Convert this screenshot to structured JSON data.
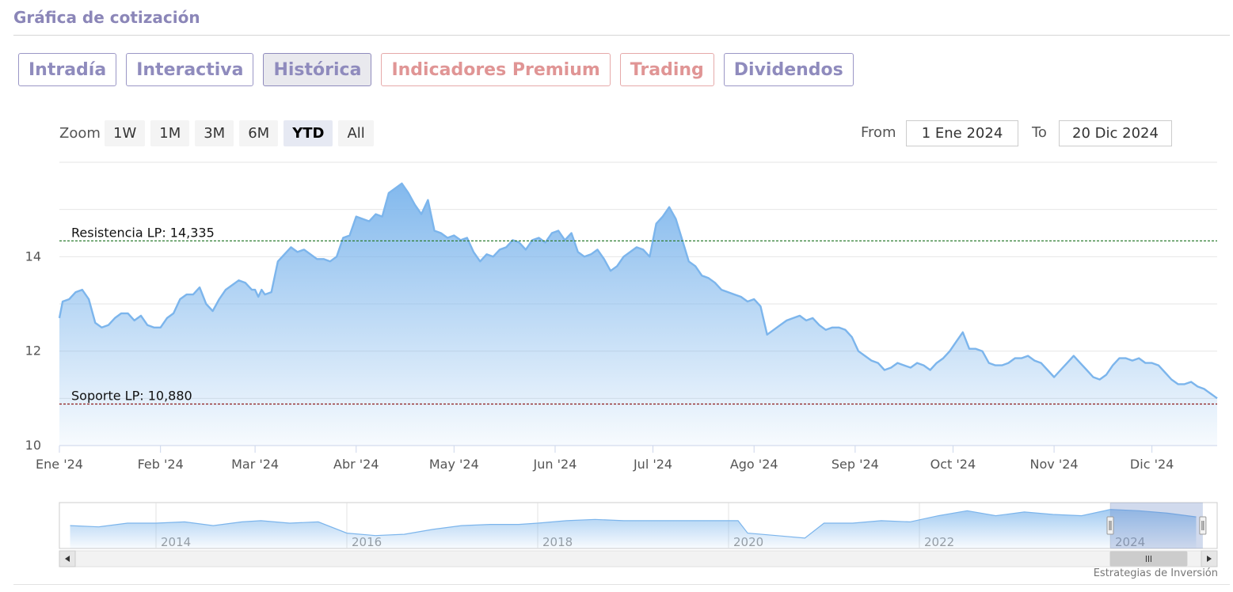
{
  "page": {
    "title": "Gráfica de cotización"
  },
  "tabs": [
    {
      "label": "Intradía",
      "state": "normal"
    },
    {
      "label": "Interactiva",
      "state": "normal"
    },
    {
      "label": "Histórica",
      "state": "active"
    },
    {
      "label": "Indicadores Premium",
      "state": "premium"
    },
    {
      "label": "Trading",
      "state": "premium"
    },
    {
      "label": "Dividendos",
      "state": "normal"
    }
  ],
  "zoom": {
    "label": "Zoom",
    "buttons": [
      "1W",
      "1M",
      "3M",
      "6M",
      "YTD",
      "All"
    ],
    "active": "YTD"
  },
  "range": {
    "from_label": "From",
    "from_value": "1 Ene 2024",
    "to_label": "To",
    "to_value": "20 Dic 2024"
  },
  "credit": "Estrategias de Inversión",
  "chart_data": {
    "type": "area",
    "series_color": "#7cb5ec",
    "grid": true,
    "ylim": [
      10,
      16
    ],
    "y_ticks": [
      10,
      12,
      14
    ],
    "x_ticks": [
      {
        "label": "Ene '24",
        "day": 0
      },
      {
        "label": "Feb '24",
        "day": 31
      },
      {
        "label": "Mar '24",
        "day": 60
      },
      {
        "label": "Abr '24",
        "day": 91
      },
      {
        "label": "May '24",
        "day": 121
      },
      {
        "label": "Jun '24",
        "day": 152
      },
      {
        "label": "Jul '24",
        "day": 182
      },
      {
        "label": "Ago '24",
        "day": 213
      },
      {
        "label": "Sep '24",
        "day": 244
      },
      {
        "label": "Oct '24",
        "day": 274
      },
      {
        "label": "Nov '24",
        "day": 305
      },
      {
        "label": "Dic '24",
        "day": 335
      }
    ],
    "points": [
      [
        0,
        12.7
      ],
      [
        1,
        13.05
      ],
      [
        3,
        13.1
      ],
      [
        5,
        13.25
      ],
      [
        7,
        13.3
      ],
      [
        9,
        13.1
      ],
      [
        11,
        12.6
      ],
      [
        13,
        12.5
      ],
      [
        15,
        12.55
      ],
      [
        17,
        12.7
      ],
      [
        19,
        12.8
      ],
      [
        21,
        12.8
      ],
      [
        23,
        12.65
      ],
      [
        25,
        12.75
      ],
      [
        27,
        12.55
      ],
      [
        29,
        12.5
      ],
      [
        31,
        12.5
      ],
      [
        33,
        12.7
      ],
      [
        35,
        12.8
      ],
      [
        37,
        13.1
      ],
      [
        39,
        13.2
      ],
      [
        41,
        13.2
      ],
      [
        43,
        13.35
      ],
      [
        45,
        13.0
      ],
      [
        47,
        12.85
      ],
      [
        49,
        13.1
      ],
      [
        51,
        13.3
      ],
      [
        53,
        13.4
      ],
      [
        55,
        13.5
      ],
      [
        57,
        13.45
      ],
      [
        59,
        13.3
      ],
      [
        60,
        13.3
      ],
      [
        61,
        13.15
      ],
      [
        62,
        13.3
      ],
      [
        63,
        13.2
      ],
      [
        65,
        13.25
      ],
      [
        67,
        13.9
      ],
      [
        69,
        14.05
      ],
      [
        71,
        14.2
      ],
      [
        73,
        14.1
      ],
      [
        75,
        14.15
      ],
      [
        77,
        14.05
      ],
      [
        79,
        13.95
      ],
      [
        81,
        13.95
      ],
      [
        83,
        13.9
      ],
      [
        85,
        14.0
      ],
      [
        87,
        14.4
      ],
      [
        89,
        14.45
      ],
      [
        91,
        14.85
      ],
      [
        93,
        14.8
      ],
      [
        95,
        14.75
      ],
      [
        97,
        14.9
      ],
      [
        99,
        14.85
      ],
      [
        101,
        15.35
      ],
      [
        103,
        15.45
      ],
      [
        105,
        15.55
      ],
      [
        107,
        15.35
      ],
      [
        109,
        15.1
      ],
      [
        111,
        14.9
      ],
      [
        113,
        15.2
      ],
      [
        115,
        14.55
      ],
      [
        117,
        14.5
      ],
      [
        119,
        14.4
      ],
      [
        121,
        14.45
      ],
      [
        123,
        14.35
      ],
      [
        125,
        14.4
      ],
      [
        127,
        14.1
      ],
      [
        129,
        13.9
      ],
      [
        131,
        14.05
      ],
      [
        133,
        14.0
      ],
      [
        135,
        14.15
      ],
      [
        137,
        14.2
      ],
      [
        139,
        14.35
      ],
      [
        141,
        14.3
      ],
      [
        143,
        14.15
      ],
      [
        145,
        14.35
      ],
      [
        147,
        14.4
      ],
      [
        149,
        14.3
      ],
      [
        151,
        14.5
      ],
      [
        153,
        14.55
      ],
      [
        155,
        14.35
      ],
      [
        157,
        14.5
      ],
      [
        159,
        14.1
      ],
      [
        161,
        14.0
      ],
      [
        163,
        14.05
      ],
      [
        165,
        14.15
      ],
      [
        167,
        13.95
      ],
      [
        169,
        13.7
      ],
      [
        171,
        13.8
      ],
      [
        173,
        14.0
      ],
      [
        175,
        14.1
      ],
      [
        177,
        14.2
      ],
      [
        179,
        14.15
      ],
      [
        181,
        14.0
      ],
      [
        183,
        14.7
      ],
      [
        185,
        14.85
      ],
      [
        187,
        15.05
      ],
      [
        189,
        14.8
      ],
      [
        191,
        14.35
      ],
      [
        193,
        13.9
      ],
      [
        195,
        13.8
      ],
      [
        197,
        13.6
      ],
      [
        199,
        13.55
      ],
      [
        201,
        13.45
      ],
      [
        203,
        13.3
      ],
      [
        205,
        13.25
      ],
      [
        207,
        13.2
      ],
      [
        209,
        13.15
      ],
      [
        211,
        13.05
      ],
      [
        213,
        13.1
      ],
      [
        215,
        12.95
      ],
      [
        217,
        12.35
      ],
      [
        219,
        12.45
      ],
      [
        221,
        12.55
      ],
      [
        223,
        12.65
      ],
      [
        225,
        12.7
      ],
      [
        227,
        12.75
      ],
      [
        229,
        12.65
      ],
      [
        231,
        12.7
      ],
      [
        233,
        12.55
      ],
      [
        235,
        12.45
      ],
      [
        237,
        12.5
      ],
      [
        239,
        12.5
      ],
      [
        241,
        12.45
      ],
      [
        243,
        12.3
      ],
      [
        245,
        12.0
      ],
      [
        247,
        11.9
      ],
      [
        249,
        11.8
      ],
      [
        251,
        11.75
      ],
      [
        253,
        11.6
      ],
      [
        255,
        11.65
      ],
      [
        257,
        11.75
      ],
      [
        259,
        11.7
      ],
      [
        261,
        11.65
      ],
      [
        263,
        11.75
      ],
      [
        265,
        11.7
      ],
      [
        267,
        11.6
      ],
      [
        269,
        11.75
      ],
      [
        271,
        11.85
      ],
      [
        273,
        12.0
      ],
      [
        275,
        12.2
      ],
      [
        277,
        12.4
      ],
      [
        279,
        12.05
      ],
      [
        281,
        12.05
      ],
      [
        283,
        12.0
      ],
      [
        285,
        11.75
      ],
      [
        287,
        11.7
      ],
      [
        289,
        11.7
      ],
      [
        291,
        11.75
      ],
      [
        293,
        11.85
      ],
      [
        295,
        11.85
      ],
      [
        297,
        11.9
      ],
      [
        299,
        11.8
      ],
      [
        301,
        11.75
      ],
      [
        303,
        11.6
      ],
      [
        305,
        11.45
      ],
      [
        307,
        11.6
      ],
      [
        309,
        11.75
      ],
      [
        311,
        11.9
      ],
      [
        313,
        11.75
      ],
      [
        315,
        11.6
      ],
      [
        317,
        11.45
      ],
      [
        319,
        11.4
      ],
      [
        321,
        11.5
      ],
      [
        323,
        11.7
      ],
      [
        325,
        11.85
      ],
      [
        327,
        11.85
      ],
      [
        329,
        11.8
      ],
      [
        331,
        11.85
      ],
      [
        333,
        11.75
      ],
      [
        335,
        11.75
      ],
      [
        337,
        11.7
      ],
      [
        339,
        11.55
      ],
      [
        341,
        11.4
      ],
      [
        343,
        11.3
      ],
      [
        345,
        11.3
      ],
      [
        347,
        11.35
      ],
      [
        349,
        11.25
      ],
      [
        351,
        11.2
      ],
      [
        353,
        11.1
      ],
      [
        354,
        11.05
      ],
      [
        355,
        11.0
      ]
    ],
    "plot_lines": [
      {
        "label": "Resistencia LP: 14,335",
        "value": 14.335,
        "color": "#2e7d32"
      },
      {
        "label": "Soporte LP: 10,880",
        "value": 10.88,
        "color": "#8b1a1a"
      }
    ],
    "navigator": {
      "axis_labels": [
        "2014",
        "2016",
        "2018",
        "2020",
        "2022",
        "2024"
      ],
      "selected_label": "2024",
      "points": [
        [
          2013.1,
          11.6
        ],
        [
          2013.4,
          11.5
        ],
        [
          2013.7,
          11.8
        ],
        [
          2014.0,
          11.8
        ],
        [
          2014.3,
          11.9
        ],
        [
          2014.6,
          11.6
        ],
        [
          2014.9,
          11.9
        ],
        [
          2015.1,
          12.0
        ],
        [
          2015.4,
          11.8
        ],
        [
          2015.7,
          11.9
        ],
        [
          2016.0,
          11.0
        ],
        [
          2016.3,
          10.8
        ],
        [
          2016.6,
          10.9
        ],
        [
          2016.9,
          11.3
        ],
        [
          2017.2,
          11.6
        ],
        [
          2017.5,
          11.7
        ],
        [
          2017.8,
          11.7
        ],
        [
          2018.0,
          11.8
        ],
        [
          2018.3,
          12.0
        ],
        [
          2018.6,
          12.1
        ],
        [
          2018.9,
          12.0
        ],
        [
          2019.2,
          12.0
        ],
        [
          2019.5,
          12.0
        ],
        [
          2019.8,
          12.0
        ],
        [
          2020.1,
          12.0
        ],
        [
          2020.2,
          11.0
        ],
        [
          2020.5,
          10.8
        ],
        [
          2020.8,
          10.6
        ],
        [
          2021.0,
          11.8
        ],
        [
          2021.3,
          11.8
        ],
        [
          2021.6,
          12.0
        ],
        [
          2021.9,
          11.9
        ],
        [
          2022.2,
          12.4
        ],
        [
          2022.5,
          12.8
        ],
        [
          2022.8,
          12.4
        ],
        [
          2023.1,
          12.7
        ],
        [
          2023.4,
          12.5
        ],
        [
          2023.7,
          12.4
        ],
        [
          2024.0,
          12.9
        ],
        [
          2024.3,
          12.8
        ],
        [
          2024.6,
          12.6
        ],
        [
          2024.9,
          12.3
        ]
      ]
    }
  }
}
